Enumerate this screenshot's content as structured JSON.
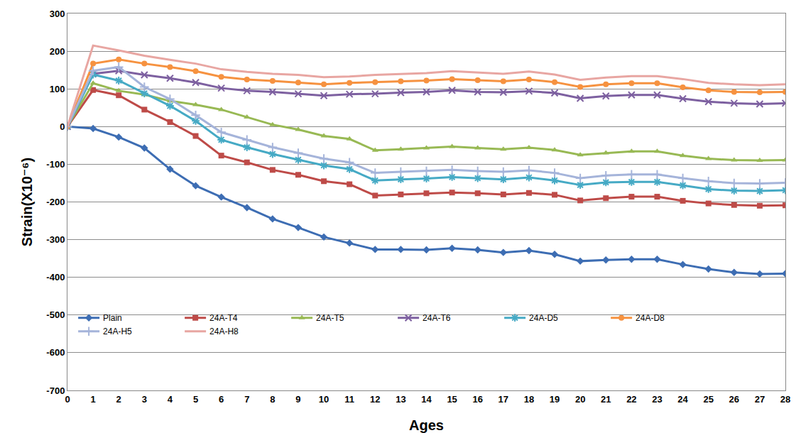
{
  "chart_data": {
    "type": "line",
    "x_label": "Ages",
    "y_label": "Strain(X10⁻⁶)",
    "x": [
      0,
      1,
      2,
      3,
      4,
      5,
      6,
      7,
      8,
      9,
      10,
      11,
      12,
      13,
      14,
      15,
      16,
      17,
      18,
      19,
      20,
      21,
      22,
      23,
      24,
      25,
      26,
      27,
      28
    ],
    "xlim": [
      0,
      28
    ],
    "xticks": [
      0,
      1,
      2,
      3,
      4,
      5,
      6,
      7,
      8,
      9,
      10,
      11,
      12,
      13,
      14,
      15,
      16,
      17,
      18,
      19,
      20,
      21,
      22,
      23,
      24,
      25,
      26,
      27,
      28
    ],
    "ylim": [
      -700,
      300
    ],
    "yticks": [
      -700,
      -600,
      -500,
      -400,
      -300,
      -200,
      -100,
      0,
      100,
      200,
      300
    ],
    "grid": true,
    "legend": "lower left",
    "series": [
      {
        "name": "Plain",
        "color": "#3D6DB3",
        "marker": "diamond",
        "values": [
          0,
          -5,
          -28,
          -57,
          -113,
          -157,
          -187,
          -215,
          -245,
          -268,
          -293,
          -309,
          -326,
          -326,
          -327,
          -323,
          -327,
          -334,
          -329,
          -339,
          -357,
          -354,
          -352,
          -352,
          -366,
          -378,
          -387,
          -391,
          -390
        ]
      },
      {
        "name": "24A-T4",
        "color": "#BE4B48",
        "marker": "square",
        "values": [
          0,
          97,
          83,
          45,
          12,
          -25,
          -77,
          -95,
          -115,
          -128,
          -145,
          -153,
          -183,
          -180,
          -177,
          -175,
          -177,
          -180,
          -176,
          -181,
          -196,
          -190,
          -186,
          -186,
          -197,
          -204,
          -208,
          -210,
          -209
        ]
      },
      {
        "name": "24A-T5",
        "color": "#98B954",
        "marker": "triangle",
        "values": [
          0,
          115,
          95,
          85,
          68,
          58,
          45,
          25,
          5,
          -8,
          -25,
          -33,
          -63,
          -60,
          -57,
          -53,
          -57,
          -60,
          -56,
          -62,
          -75,
          -70,
          -66,
          -66,
          -77,
          -85,
          -89,
          -90,
          -89
        ]
      },
      {
        "name": "24A-T6",
        "color": "#7D60A0",
        "marker": "x",
        "values": [
          0,
          140,
          148,
          137,
          128,
          117,
          102,
          95,
          92,
          87,
          82,
          86,
          87,
          90,
          92,
          96,
          92,
          91,
          94,
          89,
          75,
          81,
          84,
          84,
          74,
          66,
          62,
          60,
          62
        ]
      },
      {
        "name": "24A-D5",
        "color": "#46AAC5",
        "marker": "asterisk",
        "values": [
          0,
          138,
          122,
          88,
          55,
          15,
          -35,
          -55,
          -73,
          -88,
          -103,
          -113,
          -143,
          -140,
          -138,
          -134,
          -137,
          -140,
          -135,
          -143,
          -155,
          -148,
          -147,
          -147,
          -156,
          -166,
          -170,
          -171,
          -169
        ]
      },
      {
        "name": "24A-D8",
        "color": "#F69240",
        "marker": "circle",
        "values": [
          0,
          167,
          178,
          167,
          158,
          147,
          132,
          125,
          121,
          117,
          112,
          116,
          118,
          120,
          122,
          126,
          123,
          120,
          125,
          118,
          105,
          112,
          115,
          115,
          104,
          96,
          92,
          91,
          92
        ]
      },
      {
        "name": "24A-H5",
        "color": "#A5B4DA",
        "marker": "cross",
        "values": [
          0,
          148,
          158,
          105,
          73,
          30,
          -15,
          -35,
          -55,
          -70,
          -85,
          -95,
          -123,
          -120,
          -118,
          -115,
          -118,
          -120,
          -116,
          -123,
          -137,
          -130,
          -127,
          -127,
          -137,
          -145,
          -150,
          -151,
          -149
        ]
      },
      {
        "name": "24A-H8",
        "color": "#E8A6A2",
        "marker": "none",
        "values": [
          0,
          215,
          202,
          188,
          177,
          167,
          152,
          145,
          140,
          137,
          131,
          133,
          137,
          140,
          142,
          147,
          143,
          140,
          146,
          138,
          124,
          130,
          134,
          134,
          126,
          116,
          112,
          110,
          112
        ]
      }
    ]
  }
}
